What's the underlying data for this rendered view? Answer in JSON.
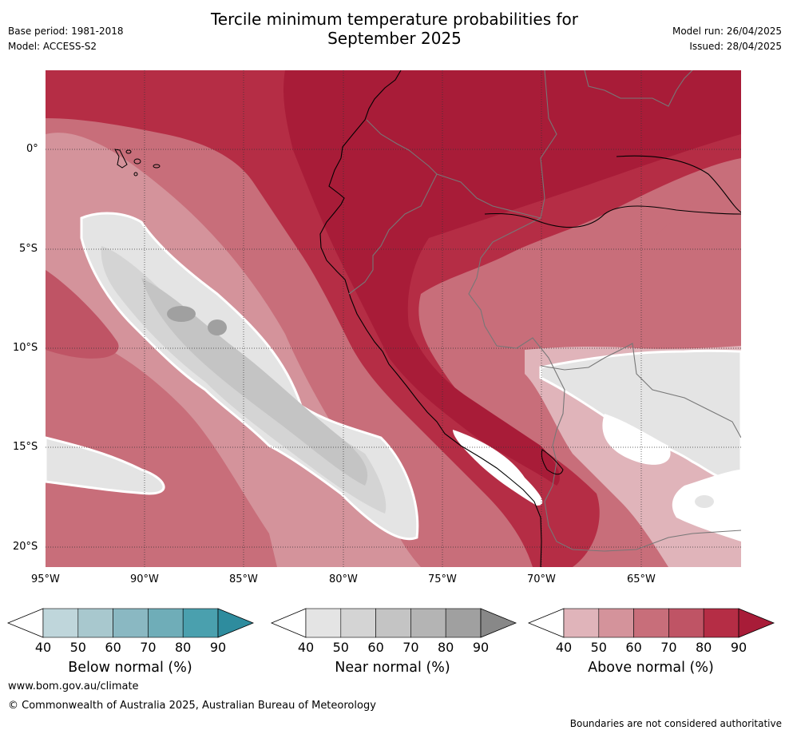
{
  "header": {
    "title_line1": "Tercile minimum temperature probabilities for",
    "title_line2": "September 2025",
    "base_period": "Base period: 1981-2018",
    "model": "Model: ACCESS-S2",
    "model_run": "Model run: 26/04/2025",
    "issued": "Issued: 28/04/2025"
  },
  "map": {
    "lat_labels": [
      "0°",
      "5°S",
      "10°S",
      "15°S",
      "20°S"
    ],
    "lon_labels": [
      "95°W",
      "90°W",
      "85°W",
      "80°W",
      "75°W",
      "70°W",
      "65°W"
    ]
  },
  "colorbars": [
    {
      "id": "below",
      "title": "Below normal (%)",
      "ticks": [
        "40",
        "50",
        "60",
        "70",
        "80",
        "90"
      ],
      "colors": [
        "#bfd6db",
        "#a8c8ce",
        "#8ab8c2",
        "#6fadb8",
        "#4aa0ae",
        "#2e8c9e"
      ]
    },
    {
      "id": "near",
      "title": "Near normal (%)",
      "ticks": [
        "40",
        "50",
        "60",
        "70",
        "80",
        "90"
      ],
      "colors": [
        "#e4e4e4",
        "#d4d4d4",
        "#c4c4c4",
        "#b4b4b4",
        "#a0a0a0",
        "#888888"
      ]
    },
    {
      "id": "above",
      "title": "Above normal (%)",
      "ticks": [
        "40",
        "50",
        "60",
        "70",
        "80",
        "90"
      ],
      "colors": [
        "#e0b4ba",
        "#d4939b",
        "#c86e7a",
        "#bf5465",
        "#b52d45",
        "#a81c38"
      ]
    }
  ],
  "footer": {
    "url": "www.bom.gov.au/climate",
    "copyright": "© Commonwealth of Australia 2025, Australian Bureau of Meteorology",
    "disclaimer": "Boundaries are not considered authoritative"
  }
}
